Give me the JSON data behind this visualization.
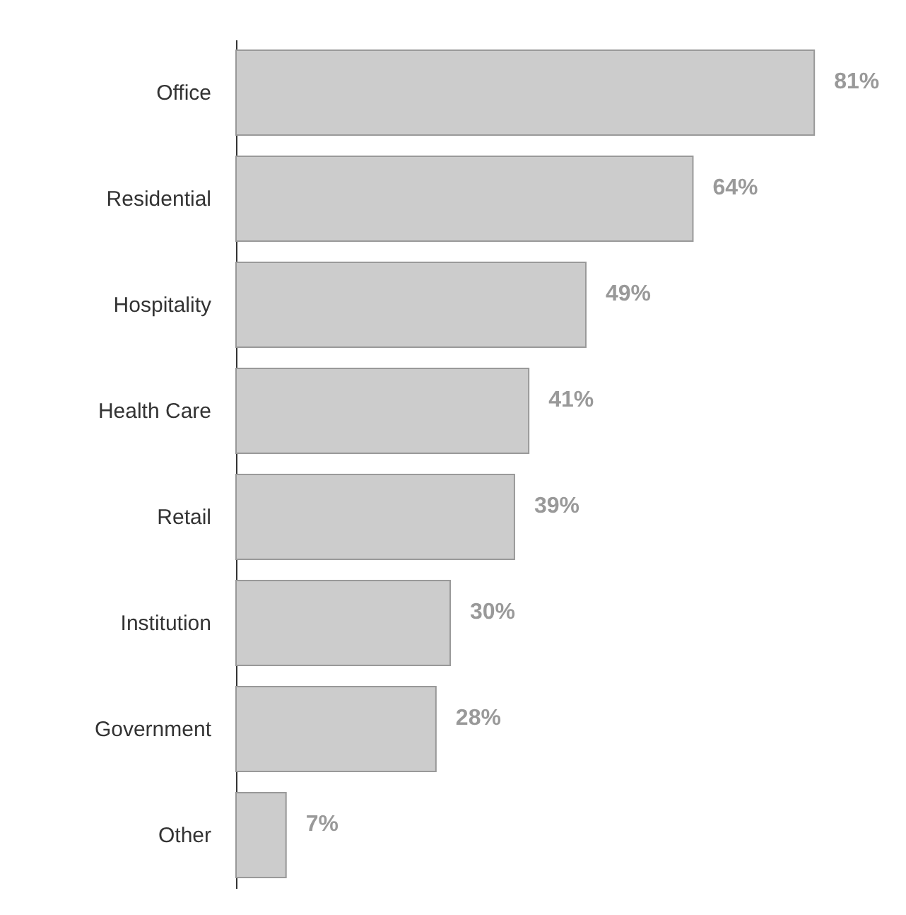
{
  "chart_data": {
    "type": "bar",
    "orientation": "horizontal",
    "categories": [
      "Office",
      "Residential",
      "Hospitality",
      "Health Care",
      "Retail",
      "Institution",
      "Government",
      "Other"
    ],
    "values": [
      81,
      64,
      49,
      41,
      39,
      30,
      28,
      7
    ],
    "color": "#cccccc",
    "value_labels": [
      "81%",
      "64%",
      "49%",
      "41%",
      "39%",
      "30%",
      "28%",
      "7%"
    ]
  }
}
